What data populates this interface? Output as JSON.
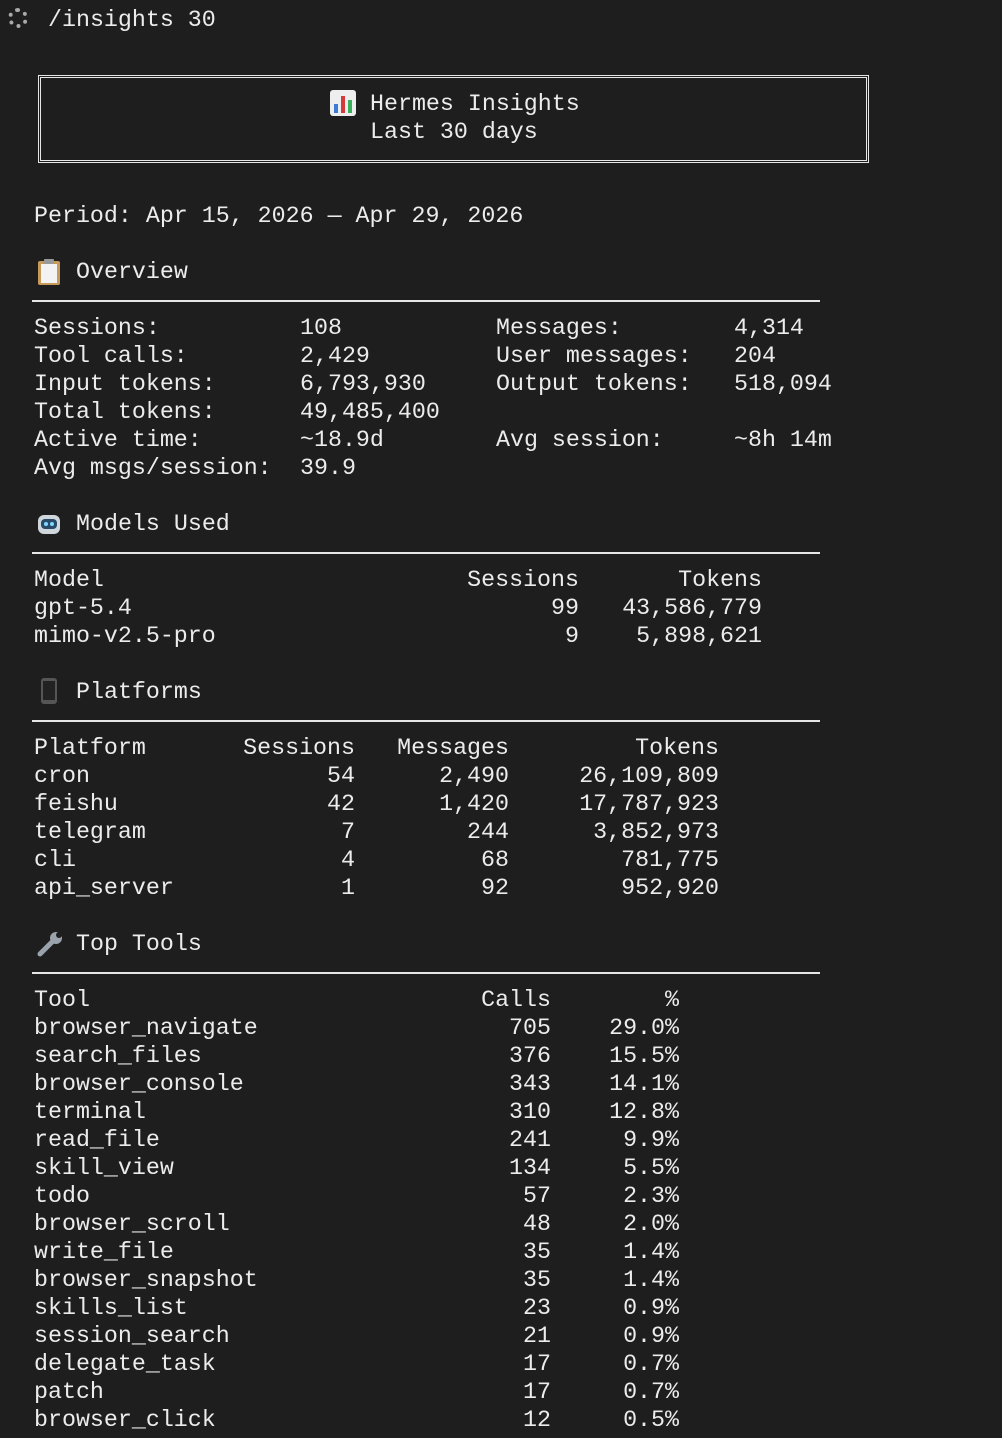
{
  "command": "/insights 30",
  "header": {
    "title": "Hermes Insights",
    "subtitle": "Last 30 days"
  },
  "period": "Period: Apr 15, 2026 — Apr 29, 2026",
  "overview": {
    "title": "Overview",
    "rows": [
      [
        "Sessions:",
        "108",
        "Messages:",
        "4,314"
      ],
      [
        "Tool calls:",
        "2,429",
        "User messages:",
        "204"
      ],
      [
        "Input tokens:",
        "6,793,930",
        "Output tokens:",
        "518,094"
      ],
      [
        "Total tokens:",
        "49,485,400"
      ],
      [
        "Active time:",
        "~18.9d",
        "Avg session:",
        "~8h 14m"
      ],
      [
        "Avg msgs/session:",
        "39.9"
      ]
    ]
  },
  "models": {
    "title": "Models Used",
    "columns": [
      "Model",
      "Sessions",
      "Tokens"
    ],
    "rows": [
      [
        "gpt-5.4",
        "99",
        "43,586,779"
      ],
      [
        "mimo-v2.5-pro",
        "9",
        "5,898,621"
      ]
    ]
  },
  "platforms": {
    "title": "Platforms",
    "columns": [
      "Platform",
      "Sessions",
      "Messages",
      "Tokens"
    ],
    "rows": [
      [
        "cron",
        "54",
        "2,490",
        "26,109,809"
      ],
      [
        "feishu",
        "42",
        "1,420",
        "17,787,923"
      ],
      [
        "telegram",
        "7",
        "244",
        "3,852,973"
      ],
      [
        "cli",
        "4",
        "68",
        "781,775"
      ],
      [
        "api_server",
        "1",
        "92",
        "952,920"
      ]
    ]
  },
  "tools": {
    "title": "Top Tools",
    "columns": [
      "Tool",
      "Calls",
      "%"
    ],
    "rows": [
      [
        "browser_navigate",
        "705",
        "29.0%"
      ],
      [
        "search_files",
        "376",
        "15.5%"
      ],
      [
        "browser_console",
        "343",
        "14.1%"
      ],
      [
        "terminal",
        "310",
        "12.8%"
      ],
      [
        "read_file",
        "241",
        "9.9%"
      ],
      [
        "skill_view",
        "134",
        "5.5%"
      ],
      [
        "todo",
        "57",
        "2.3%"
      ],
      [
        "browser_scroll",
        "48",
        "2.0%"
      ],
      [
        "write_file",
        "35",
        "1.4%"
      ],
      [
        "browser_snapshot",
        "35",
        "1.4%"
      ],
      [
        "skills_list",
        "23",
        "0.9%"
      ],
      [
        "session_search",
        "21",
        "0.9%"
      ],
      [
        "delegate_task",
        "17",
        "0.7%"
      ],
      [
        "patch",
        "17",
        "0.7%"
      ],
      [
        "browser_click",
        "12",
        "0.5%"
      ]
    ]
  }
}
